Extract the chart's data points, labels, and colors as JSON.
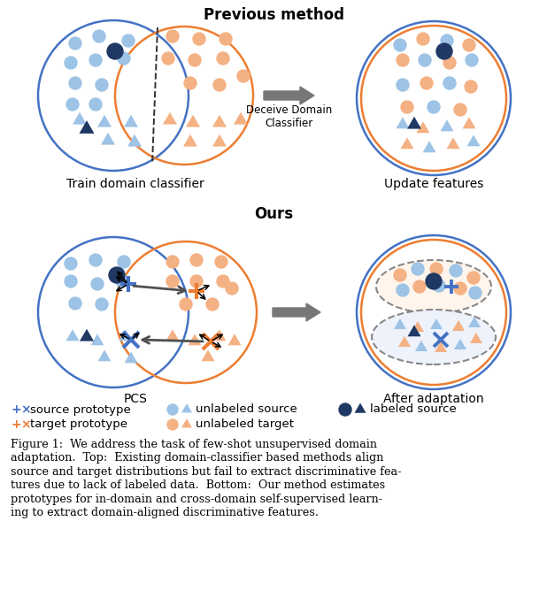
{
  "title_top": "Previous method",
  "title_bottom": "Ours",
  "blue": "#4472C4",
  "light_blue": "#9DC3E6",
  "orange": "#ED7D31",
  "light_orange": "#F4B183",
  "dark_blue": "#1F3864",
  "gray_arrow": "#808080",
  "bg": "#FFFFFF",
  "caption": "Figure 1:  We address the task of few-shot unsupervised domain adaptation.  Top:  Existing domain-classifier based methods align source and target distributions but fail to extract discriminative fea-tures due to lack of labeled data.  Bottom:  Our method estimates prototypes for in-domain and cross-domain self-supervised learn-ing to extract domain-aligned discriminative features.",
  "label_train": "Train domain classifier",
  "label_update": "Update features",
  "label_pcs": "PCS",
  "label_after": "After adaptation",
  "arrow_label": "Deceive Domain\nClassifier",
  "fig_width": 6.18,
  "fig_height": 6.76,
  "dpi": 100
}
